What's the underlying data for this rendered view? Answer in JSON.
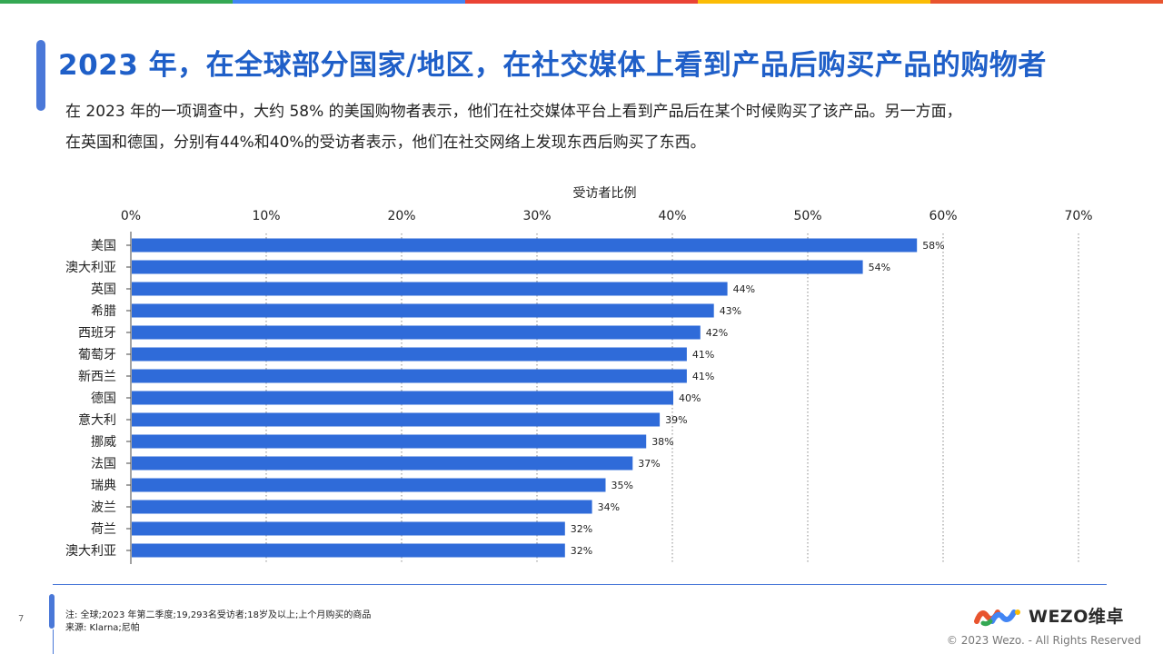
{
  "brand_colors": [
    "#34a853",
    "#4285f4",
    "#ea4335",
    "#fbbc05",
    "#e8542e"
  ],
  "accent_color": "#4a78d8",
  "title": "2023 年，在全球部分国家/地区，在社交媒体上看到产品后购买产品的购物者",
  "description": [
    "在 2023 年的一项调查中，大约 58% 的美国购物者表示，他们在社交媒体平台上看到产品后在某个时候购买了该产品。另一方面，",
    "在英国和德国，分别有44%和40%的受访者表示，他们在社交网络上发现东西后购买了东西。"
  ],
  "chart_data": {
    "type": "bar",
    "orientation": "horizontal",
    "xlabel": "受访者比例",
    "xlim": [
      0,
      70
    ],
    "ticks": [
      0,
      10,
      20,
      30,
      40,
      50,
      60,
      70
    ],
    "tick_labels": [
      "0%",
      "10%",
      "20%",
      "30%",
      "40%",
      "50%",
      "60%",
      "70%"
    ],
    "categories": [
      "美国",
      "澳大利亚",
      "英国",
      "希腊",
      "西班牙",
      "葡萄牙",
      "新西兰",
      "德国",
      "意大利",
      "挪威",
      "法国",
      "瑞典",
      "波兰",
      "荷兰",
      "澳大利亚"
    ],
    "values": [
      58,
      54,
      44,
      43,
      42,
      41,
      41,
      40,
      39,
      38,
      37,
      35,
      34,
      32,
      32
    ],
    "value_labels": [
      "58%",
      "54%",
      "44%",
      "43%",
      "42%",
      "41%",
      "41%",
      "40%",
      "39%",
      "38%",
      "37%",
      "35%",
      "34%",
      "32%",
      "32%"
    ],
    "bar_color": "#2f6bd9",
    "grid": "vertical dotted"
  },
  "footer": {
    "page_number": "7",
    "note": "注:  全球;2023 年第二季度;19,293名受访者;18岁及以上;上个月购买的商品",
    "source": "来源:   Klarna;尼帕",
    "logo_text": "WEZO维卓",
    "copyright": "© 2023 Wezo. - All Rights Reserved"
  }
}
